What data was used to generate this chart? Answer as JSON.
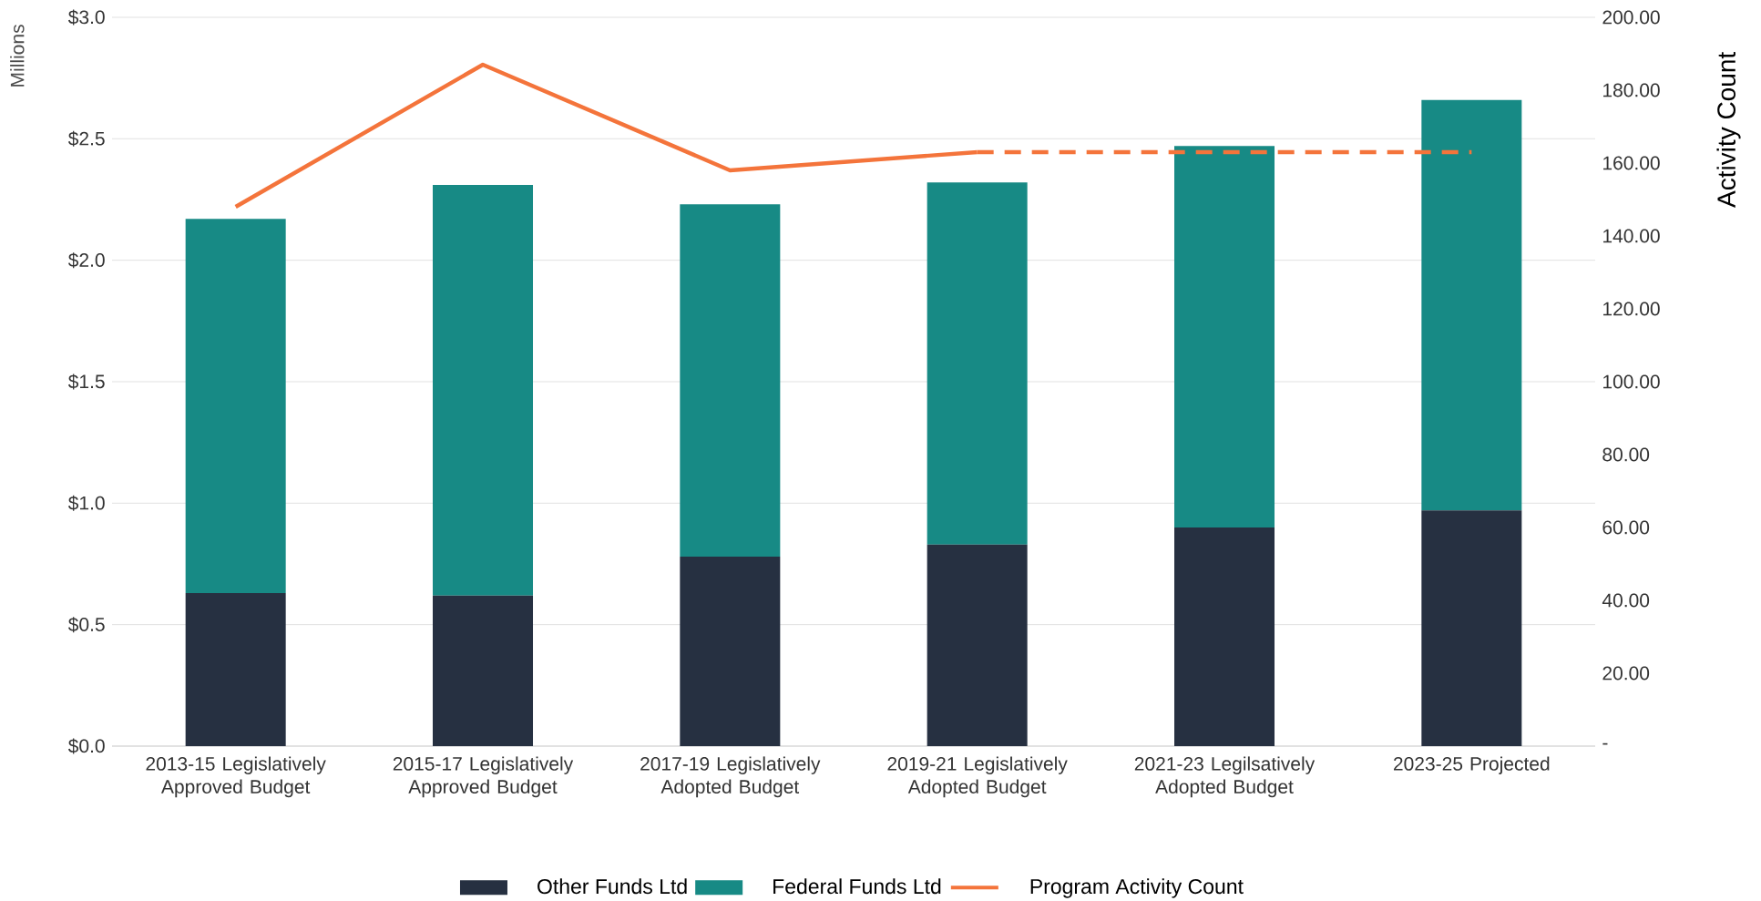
{
  "chart_data": {
    "type": "bar",
    "stacked": true,
    "ylabel": "Millions",
    "y2label": "Activity Count",
    "categories": [
      "2013-15 Legislatively Approved Budget",
      "2015-17 Legislatively Approved Budget",
      "2017-19 Legislatively Adopted Budget",
      "2019-21 Legislatively Adopted Budget",
      "2021-23 Legilsatively Adopted Budget",
      "2023-25 Projected"
    ],
    "series": [
      {
        "name": "Other Funds Ltd",
        "color": "#263041",
        "values": [
          0.63,
          0.62,
          0.78,
          0.83,
          0.9,
          0.97
        ]
      },
      {
        "name": "Federal Funds Ltd",
        "color": "#178a85",
        "values": [
          1.54,
          1.69,
          1.45,
          1.49,
          1.57,
          1.69
        ]
      },
      {
        "name": "Program Activity Count",
        "type": "line",
        "axis": "y2",
        "color": "#f4743b",
        "line_style": "solid",
        "values": [
          148,
          187,
          158,
          163,
          null,
          null
        ]
      },
      {
        "type": "line",
        "axis": "y2",
        "color": "#f4743b",
        "line_style": "dashed",
        "values": [
          null,
          null,
          null,
          163,
          163,
          163
        ]
      }
    ],
    "ylim": [
      0,
      3
    ],
    "yticks": [
      {
        "value": 0,
        "label": "$0.0"
      },
      {
        "value": 0.5,
        "label": "$0.5"
      },
      {
        "value": 1,
        "label": "$1.0"
      },
      {
        "value": 1.5,
        "label": "$1.5"
      },
      {
        "value": 2,
        "label": "$2.0"
      },
      {
        "value": 2.5,
        "label": "$2.5"
      },
      {
        "value": 3,
        "label": "$3.0"
      }
    ],
    "y2lim": [
      0,
      200
    ],
    "y2ticks": [
      {
        "value": 0,
        "label": "-"
      },
      {
        "value": 20,
        "label": "20.00"
      },
      {
        "value": 40,
        "label": "40.00"
      },
      {
        "value": 60,
        "label": "60.00"
      },
      {
        "value": 80,
        "label": "80.00"
      },
      {
        "value": 100,
        "label": "100.00"
      },
      {
        "value": 120,
        "label": "120.00"
      },
      {
        "value": 140,
        "label": "140.00"
      },
      {
        "value": 160,
        "label": "160.00"
      },
      {
        "value": 180,
        "label": "180.00"
      },
      {
        "value": 200,
        "label": "200.00"
      }
    ],
    "grid": "y",
    "legend": "bottom"
  }
}
